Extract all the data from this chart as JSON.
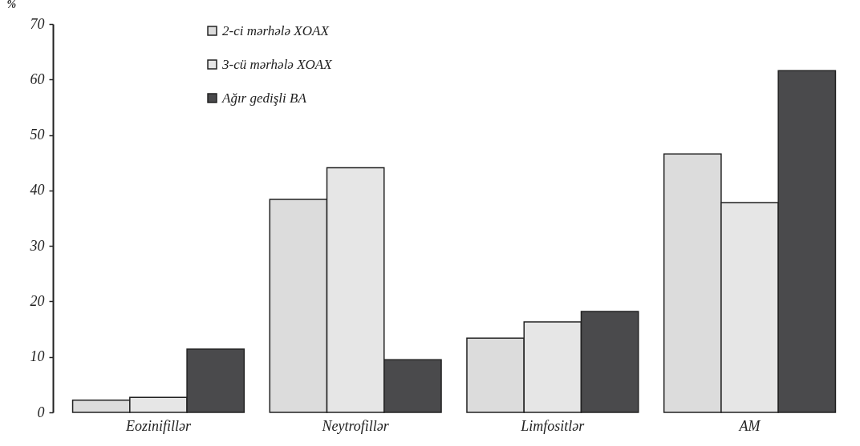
{
  "chart_data": {
    "type": "bar",
    "ylabel": "%",
    "categories": [
      "Eozinifillər",
      "Neytrofillər",
      "Limfositlər",
      "AM"
    ],
    "series": [
      {
        "name": "2-ci mərhələ XOAX",
        "color": "#dcdcdc",
        "values": [
          2.2,
          38.4,
          13.4,
          46.6
        ]
      },
      {
        "name": "3-cü mərhələ XOAX",
        "color": "#e6e6e6",
        "values": [
          2.7,
          44.1,
          16.3,
          37.8
        ]
      },
      {
        "name": "Ağır gedişli BA",
        "color": "#4a4a4c",
        "values": [
          11.4,
          9.5,
          18.2,
          61.6
        ]
      }
    ],
    "ylim": [
      0,
      70
    ],
    "yticks": [
      0,
      10,
      20,
      30,
      40,
      50,
      60,
      70
    ],
    "grid": false,
    "legend": "top"
  }
}
